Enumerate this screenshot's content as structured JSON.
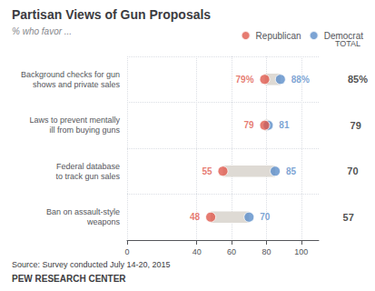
{
  "chart_data": {
    "type": "dumbbell",
    "orientation": "horizontal",
    "title": "Partisan Views of Gun Proposals",
    "subtitle": "% who favor ...",
    "categories": [
      "Background checks for gun\nshows and private sales",
      "Laws to prevent mentally\nill from buying guns",
      "Federal database\nto track gun sales",
      "Ban on assault-style\nweapons"
    ],
    "series": [
      {
        "name": "Republican",
        "color": "#e05a4e",
        "values": [
          79,
          79,
          55,
          48
        ],
        "value_labels": [
          "79%",
          "79",
          "55",
          "48"
        ]
      },
      {
        "name": "Democrat",
        "color": "#5b8dc9",
        "values": [
          88,
          81,
          85,
          70
        ],
        "value_labels": [
          "88%",
          "81",
          "85",
          "70"
        ]
      }
    ],
    "color": "#dedad4",
    "total": {
      "name": "TOTAL",
      "values": [
        85,
        79,
        70,
        57
      ],
      "value_labels": [
        "85%",
        "79",
        "70",
        "57"
      ]
    },
    "xlim": [
      0,
      110
    ],
    "xticks": [
      0,
      40,
      60,
      80,
      100
    ],
    "grid": true,
    "legend": "upper right",
    "data_labels": true,
    "annotations": [
      "Source: Survey conducted July 14-20, 2015",
      "PEW RESEARCH CENTER"
    ]
  }
}
